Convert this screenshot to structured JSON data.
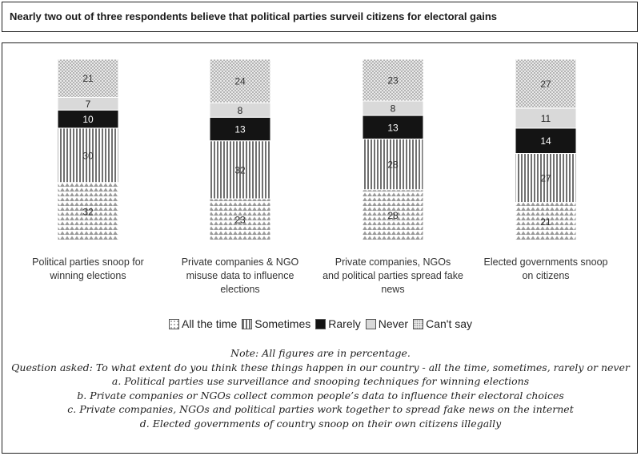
{
  "title": "Nearly two out of three respondents believe that political parties surveil citizens for electoral gains",
  "chart_data": {
    "type": "bar",
    "stacked": true,
    "orientation": "vertical",
    "ylim": [
      0,
      100
    ],
    "categories": [
      "Political parties snoop for winning elections",
      "Private companies & NGO misuse data to influence elections",
      "Private companies, NGOs and political parties spread fake news",
      "Elected governments snoop on citizens"
    ],
    "category_lines": [
      [
        "Political parties snoop for",
        "winning elections"
      ],
      [
        "Private companies & NGO",
        "misuse data to influence",
        "elections"
      ],
      [
        "Private companies, NGOs",
        "and political parties spread fake news"
      ],
      [
        "Elected governments snoop",
        "on citizens"
      ]
    ],
    "series": [
      {
        "name": "All the time",
        "values": [
          32,
          23,
          28,
          21
        ],
        "pattern": "triangles",
        "text_color": "#333333"
      },
      {
        "name": "Sometimes",
        "values": [
          30,
          32,
          28,
          27
        ],
        "pattern": "vlines",
        "text_color": "#333333"
      },
      {
        "name": "Rarely",
        "values": [
          10,
          13,
          13,
          14
        ],
        "pattern": "solid-black",
        "text_color": "#ffffff"
      },
      {
        "name": "Never",
        "values": [
          7,
          8,
          8,
          11
        ],
        "pattern": "light-grey",
        "text_color": "#222222"
      },
      {
        "name": "Can't say",
        "values": [
          21,
          24,
          23,
          27
        ],
        "pattern": "dots",
        "text_color": "#333333"
      }
    ],
    "legend_position": "bottom",
    "grid": false
  },
  "notes": [
    "Note: All figures are in percentage.",
    "Question asked: To what extent do you think these things happen in our country - all the time, sometimes, rarely or never",
    "a. Political parties use surveillance and snooping techniques for winning elections",
    "b. Private companies or NGOs collect common people’s data to influence their electoral choices",
    "c. Private companies, NGOs and political parties work together to spread fake news on the internet",
    "d. Elected governments of country snoop on their own citizens illegally"
  ]
}
